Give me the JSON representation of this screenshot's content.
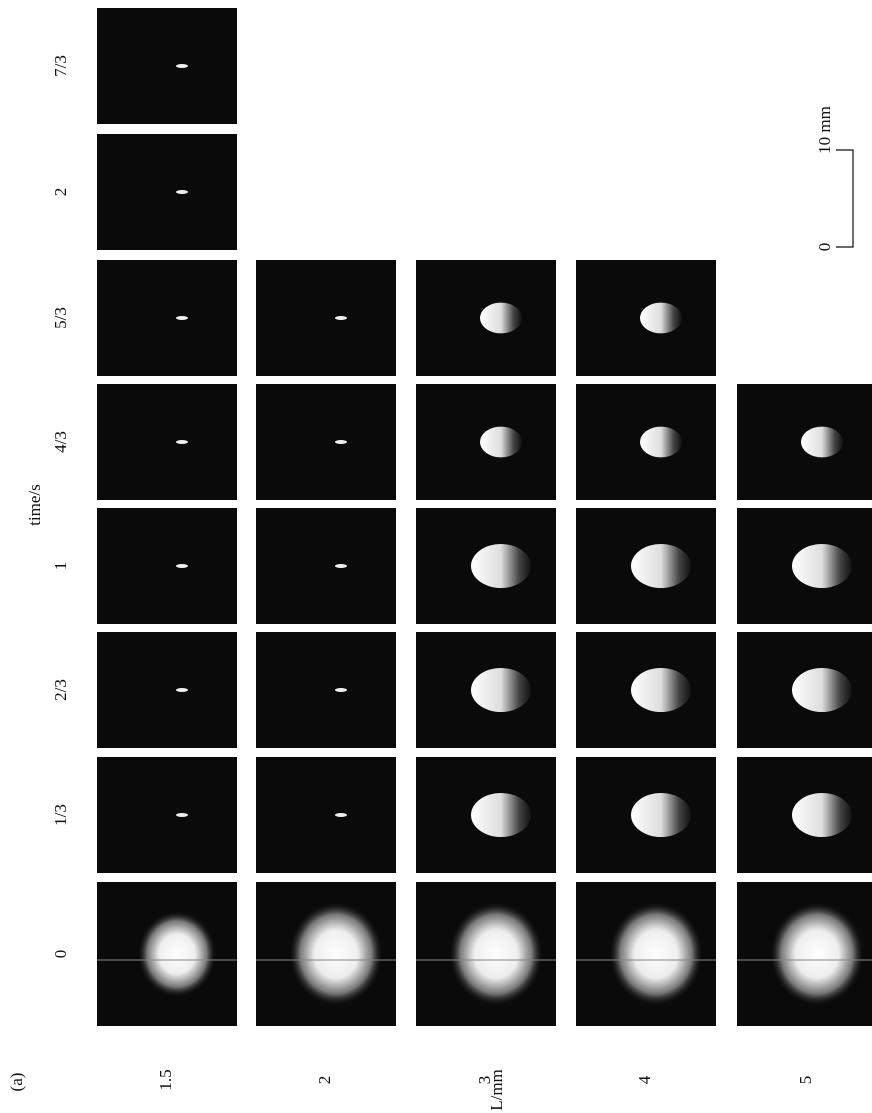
{
  "figure": {
    "panel_label": "(a)",
    "time_axis_label": "time/s",
    "length_axis_label": "L/mm",
    "times": [
      "0",
      "1/3",
      "2/3",
      "1",
      "4/3",
      "5/3",
      "2",
      "7/3"
    ],
    "lengths": [
      "1.5",
      "2",
      "3",
      "4",
      "5"
    ],
    "scale_bar": {
      "start": "0",
      "end": "10 mm"
    }
  }
}
